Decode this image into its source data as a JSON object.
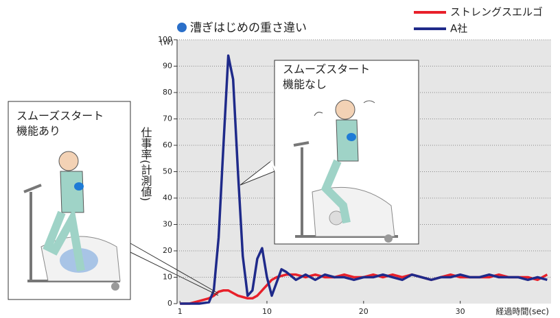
{
  "chart_data": {
    "type": "line",
    "title": "漕ぎはじめの重さ違い",
    "y_label": "仕事率(計測値)",
    "y_unit": "(W)",
    "x_label": "経過時間(sec)",
    "annotations": [
      [
        "スムーズスタート",
        "機能あり"
      ],
      [
        "スムーズスタート",
        "機能なし"
      ]
    ],
    "x": [
      1,
      2,
      3,
      4,
      4.5,
      5,
      5.5,
      6,
      6.5,
      7,
      7.5,
      8,
      8.5,
      9,
      9.5,
      10,
      10.5,
      11,
      11.5,
      12,
      13,
      14,
      15,
      16,
      17,
      18,
      19,
      20,
      21,
      22,
      23,
      24,
      25,
      26,
      27,
      28,
      29,
      30,
      31,
      32,
      33,
      34,
      35,
      36,
      37,
      38,
      39
    ],
    "series": [
      {
        "name": "ストレングスエルゴ",
        "color": "#e8202a",
        "values": [
          0,
          0,
          1,
          2,
          3,
          4.5,
          5,
          5,
          4,
          3,
          2.5,
          2,
          2,
          3,
          5,
          7,
          9,
          10,
          10.5,
          11,
          11,
          10,
          11,
          10,
          10,
          11,
          10,
          10,
          11,
          10,
          11,
          10,
          11,
          10,
          9,
          10,
          11,
          10,
          10,
          10,
          10,
          11,
          10,
          10,
          10,
          9,
          11
        ]
      },
      {
        "name": "A社",
        "color": "#1f2a8a",
        "values": [
          0,
          0,
          0,
          0.5,
          5,
          25,
          60,
          94,
          85,
          50,
          18,
          3,
          5,
          17,
          21,
          10,
          3,
          8,
          13,
          12,
          9,
          11,
          9,
          11,
          10,
          10,
          9,
          10,
          10,
          11,
          10,
          9,
          11,
          10,
          9,
          10,
          10,
          11,
          10,
          10,
          11,
          10,
          10,
          10,
          9,
          10,
          9
        ]
      }
    ],
    "xlim": [
      0.7,
      39.4
    ],
    "ylim": [
      0,
      100
    ],
    "xticks": [
      1,
      10,
      20,
      30
    ],
    "yticks": [
      0,
      10,
      20,
      30,
      40,
      50,
      60,
      70,
      80,
      90,
      100
    ],
    "grid": true
  }
}
